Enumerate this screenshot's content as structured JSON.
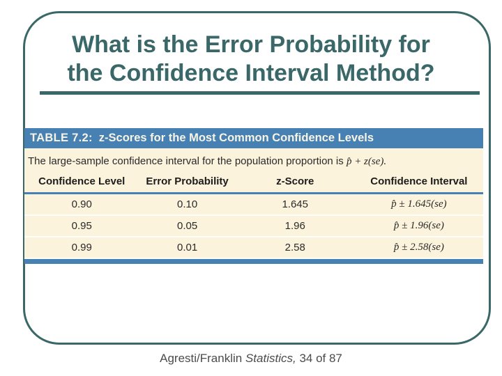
{
  "slide": {
    "title_line1": "What is the Error Probability for",
    "title_line2": "the Confidence Interval Method?"
  },
  "table": {
    "header": {
      "label": "TABLE 7.2:",
      "title": "z-Scores for the Most Common Confidence Levels"
    },
    "caption": {
      "text": "The large-sample confidence interval for the population proportion is",
      "formula": "p̂ + z(se)."
    },
    "columns": [
      "Confidence Level",
      "Error Probability",
      "z-Score",
      "Confidence Interval"
    ],
    "rows": [
      [
        "0.90",
        "0.10",
        "1.645",
        "p̂ ± 1.645(se)"
      ],
      [
        "0.95",
        "0.05",
        "1.96",
        "p̂ ± 1.96(se)"
      ],
      [
        "0.99",
        "0.01",
        "2.58",
        "p̂ ± 2.58(se)"
      ]
    ]
  },
  "footer": {
    "authors": "Agresti/Franklin",
    "book": "Statistics,",
    "page": "34 of 87"
  },
  "colors": {
    "accent-teal": "#3a6767",
    "table-blue": "#4781b3",
    "table-cream": "#fcf3dc"
  }
}
